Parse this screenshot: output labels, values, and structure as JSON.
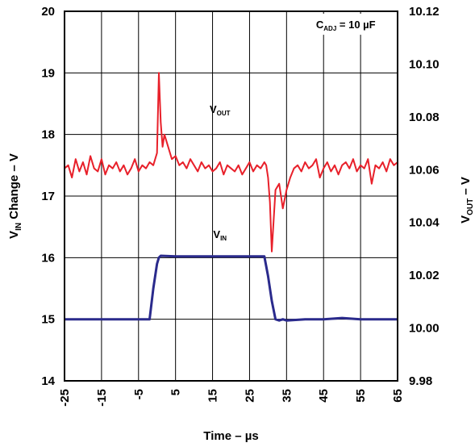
{
  "chart_data": {
    "type": "line",
    "x_axis": {
      "label_main": "Time – µs",
      "range": [
        -25,
        65
      ],
      "ticks": [
        "-25",
        "-15",
        "-5",
        "5",
        "15",
        "25",
        "35",
        "45",
        "55",
        "65"
      ],
      "tick_values": [
        -25,
        -15,
        -5,
        5,
        15,
        25,
        35,
        45,
        55,
        65
      ]
    },
    "y_left": {
      "label_prefix": "V",
      "label_sub": "IN",
      "label_suffix": " Change – V",
      "range": [
        14,
        20
      ],
      "ticks": [
        "14",
        "15",
        "16",
        "17",
        "18",
        "19",
        "20"
      ],
      "tick_values": [
        14,
        15,
        16,
        17,
        18,
        19,
        20
      ]
    },
    "y_right": {
      "label_prefix": "V",
      "label_sub": "OUT",
      "label_suffix": " – V",
      "range": [
        9.98,
        10.12
      ],
      "ticks": [
        "9.98",
        "10.00",
        "10.02",
        "10.04",
        "10.06",
        "10.08",
        "10.10",
        "10.12"
      ],
      "tick_values": [
        9.98,
        10.0,
        10.02,
        10.04,
        10.06,
        10.08,
        10.1,
        10.12
      ]
    },
    "grid": true,
    "annotation": {
      "prefix": "C",
      "sub": "ADJ",
      "suffix": " = 10 µF"
    },
    "series": [
      {
        "label_prefix": "V",
        "label_sub": "OUT",
        "color": "#e8202a",
        "axis": "left",
        "x": [
          -25,
          -24,
          -23,
          -22,
          -21,
          -20,
          -19,
          -18,
          -17,
          -16,
          -15,
          -14,
          -13,
          -12,
          -11,
          -10,
          -9,
          -8,
          -7,
          -6,
          -5,
          -4,
          -3,
          -2,
          -1,
          0,
          0.5,
          1,
          1.5,
          2,
          3,
          4,
          5,
          6,
          7,
          8,
          9,
          10,
          11,
          12,
          13,
          14,
          15,
          16,
          17,
          18,
          19,
          20,
          21,
          22,
          23,
          24,
          25,
          26,
          27,
          28,
          29,
          29.5,
          30,
          30.5,
          31,
          31.5,
          32,
          33,
          34,
          35,
          36,
          37,
          38,
          39,
          40,
          41,
          42,
          43,
          44,
          45,
          46,
          47,
          48,
          49,
          50,
          51,
          52,
          53,
          54,
          55,
          56,
          57,
          58,
          59,
          60,
          61,
          62,
          63,
          64,
          65
        ],
        "y": [
          17.45,
          17.5,
          17.3,
          17.6,
          17.4,
          17.55,
          17.35,
          17.65,
          17.45,
          17.4,
          17.6,
          17.35,
          17.5,
          17.45,
          17.55,
          17.4,
          17.5,
          17.35,
          17.45,
          17.6,
          17.4,
          17.5,
          17.45,
          17.55,
          17.5,
          17.7,
          19.0,
          18.2,
          17.8,
          18.0,
          17.8,
          17.6,
          17.65,
          17.5,
          17.55,
          17.45,
          17.6,
          17.5,
          17.4,
          17.55,
          17.45,
          17.5,
          17.4,
          17.45,
          17.55,
          17.35,
          17.5,
          17.45,
          17.4,
          17.5,
          17.35,
          17.45,
          17.55,
          17.4,
          17.5,
          17.45,
          17.55,
          17.5,
          17.3,
          16.9,
          16.1,
          16.6,
          17.1,
          17.2,
          16.8,
          17.1,
          17.3,
          17.45,
          17.5,
          17.4,
          17.55,
          17.45,
          17.5,
          17.6,
          17.3,
          17.45,
          17.55,
          17.4,
          17.5,
          17.35,
          17.5,
          17.55,
          17.45,
          17.6,
          17.4,
          17.5,
          17.45,
          17.6,
          17.2,
          17.5,
          17.45,
          17.55,
          17.4,
          17.6,
          17.5,
          17.55
        ]
      },
      {
        "label_prefix": "V",
        "label_sub": "IN",
        "color": "#2a2a8c",
        "axis": "left",
        "x": [
          -25,
          -2,
          -1,
          0,
          0.5,
          1,
          5,
          10,
          15,
          20,
          25,
          29,
          30,
          31,
          32,
          33,
          34,
          35,
          40,
          45,
          50,
          55,
          60,
          65
        ],
        "y": [
          15.0,
          15.0,
          15.5,
          15.9,
          16.0,
          16.03,
          16.02,
          16.02,
          16.02,
          16.02,
          16.02,
          16.02,
          15.7,
          15.3,
          15.0,
          14.98,
          15.0,
          14.98,
          15.0,
          15.0,
          15.02,
          15.0,
          15.0,
          15.0
        ]
      }
    ]
  }
}
